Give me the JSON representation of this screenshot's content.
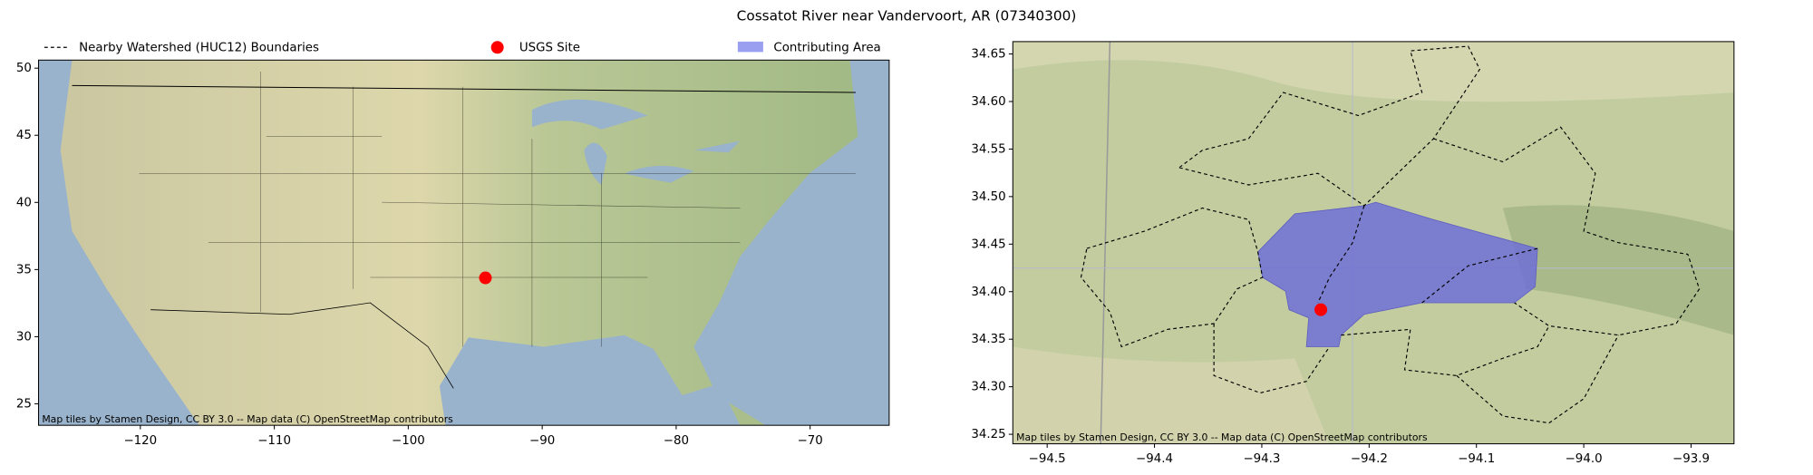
{
  "title": "Cossatot River near Vandervoort, AR (07340300)",
  "legend": [
    {
      "label": "Nearby Watershed (HUC12) Boundaries",
      "color": "#000000"
    },
    {
      "label": "USGS Site",
      "color": "#ff0000"
    },
    {
      "label": "Contributing Area",
      "color": "#9a9ff0"
    }
  ],
  "chart_data": [
    {
      "type": "scatter",
      "xlim": [
        -127.6,
        -64.1
      ],
      "ylim": [
        23.4,
        50.6
      ],
      "xticks": [
        {
          "value": -120,
          "label": "−120"
        },
        {
          "value": -110,
          "label": "−110"
        },
        {
          "value": -100,
          "label": "−100"
        },
        {
          "value": -90,
          "label": "−90"
        },
        {
          "value": -80,
          "label": "−80"
        },
        {
          "value": -70,
          "label": "−70"
        }
      ],
      "yticks": [
        25,
        30,
        35,
        40,
        45,
        50
      ],
      "series": [
        {
          "color": "#ff0000",
          "x": [
            -94.24
          ],
          "values": [
            34.38
          ]
        }
      ],
      "attribution": "Map tiles by Stamen Design, CC BY 3.0 -- Map data (C) OpenStreetMap contributors"
    },
    {
      "type": "scatter",
      "xlim": [
        -94.532,
        -93.86
      ],
      "ylim": [
        34.24,
        34.663
      ],
      "xticks": [
        {
          "value": -94.5,
          "label": "−94.5"
        },
        {
          "value": -94.4,
          "label": "−94.4"
        },
        {
          "value": -94.3,
          "label": "−94.3"
        },
        {
          "value": -94.2,
          "label": "−94.2"
        },
        {
          "value": -94.1,
          "label": "−94.1"
        },
        {
          "value": -94.0,
          "label": "−94.0"
        },
        {
          "value": -93.9,
          "label": "−93.9"
        }
      ],
      "yticks": [
        34.25,
        {
          "value": 34.3,
          "label": "34.30"
        },
        34.35,
        {
          "value": 34.4,
          "label": "34.40"
        },
        34.45,
        {
          "value": 34.5,
          "label": "34.50"
        },
        34.55,
        {
          "value": 34.6,
          "label": "34.60"
        },
        34.65
      ],
      "series": [
        {
          "color": "#ff0000",
          "x": [
            -94.245
          ],
          "values": [
            34.381
          ]
        }
      ],
      "attribution": "Map tiles by Stamen Design, CC BY 3.0 -- Map data (C) OpenStreetMap contributors"
    }
  ]
}
